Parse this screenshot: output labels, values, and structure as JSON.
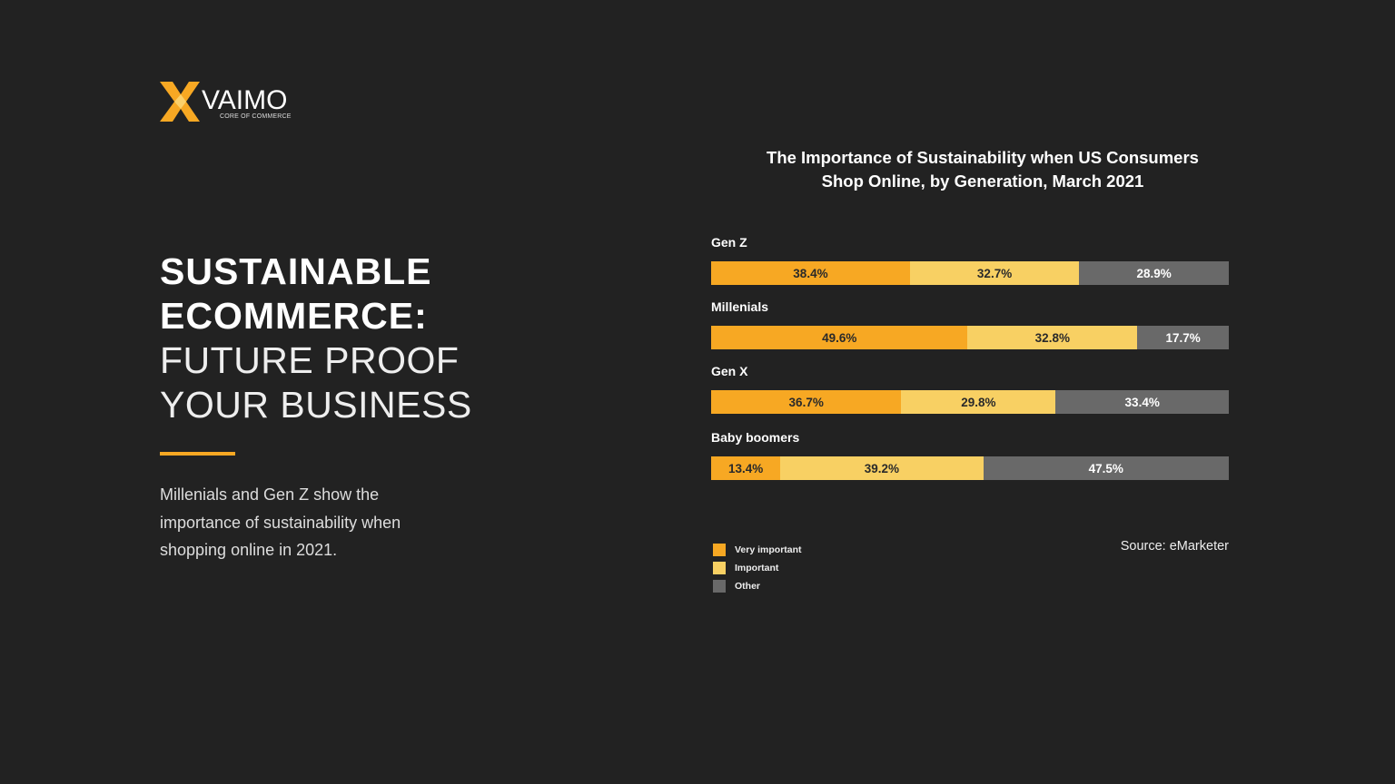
{
  "logo": {
    "word": "VAIMO",
    "tagline": "CORE OF COMMERCE"
  },
  "headline": {
    "line1": "SUSTAINABLE",
    "line2": "ECOMMERCE:",
    "line3": "FUTURE PROOF",
    "line4": "YOUR BUSINESS"
  },
  "body_text": "Millenials and Gen Z show the importance of sustainability when shopping online in 2021.",
  "source": "Source: eMarketer",
  "colors": {
    "very_important": "#f7a823",
    "important": "#f8d063",
    "other": "#696969",
    "accent": "#f7a823",
    "background": "#222222"
  },
  "chart_data": {
    "type": "bar",
    "orientation": "horizontal-stacked-100",
    "title_line1": "The Importance of Sustainability when US Consumers",
    "title_line2": "Shop Online, by Generation, March 2021",
    "categories": [
      "Gen Z",
      "Millenials",
      "Gen X",
      "Baby boomers"
    ],
    "series": [
      {
        "name": "Very important",
        "values": [
          38.4,
          49.6,
          36.7,
          13.4
        ],
        "labels": [
          "38.4%",
          "49.6%",
          "36.7%",
          "13.4%"
        ]
      },
      {
        "name": "Important",
        "values": [
          32.7,
          32.8,
          29.8,
          39.2
        ],
        "labels": [
          "32.7%",
          "32.8%",
          "29.8%",
          "39.2%"
        ]
      },
      {
        "name": "Other",
        "values": [
          28.9,
          17.7,
          33.4,
          47.5
        ],
        "labels": [
          "28.9%",
          "17.7%",
          "33.4%",
          "47.5%"
        ]
      }
    ],
    "legend_position": "bottom-left",
    "grid": false
  }
}
